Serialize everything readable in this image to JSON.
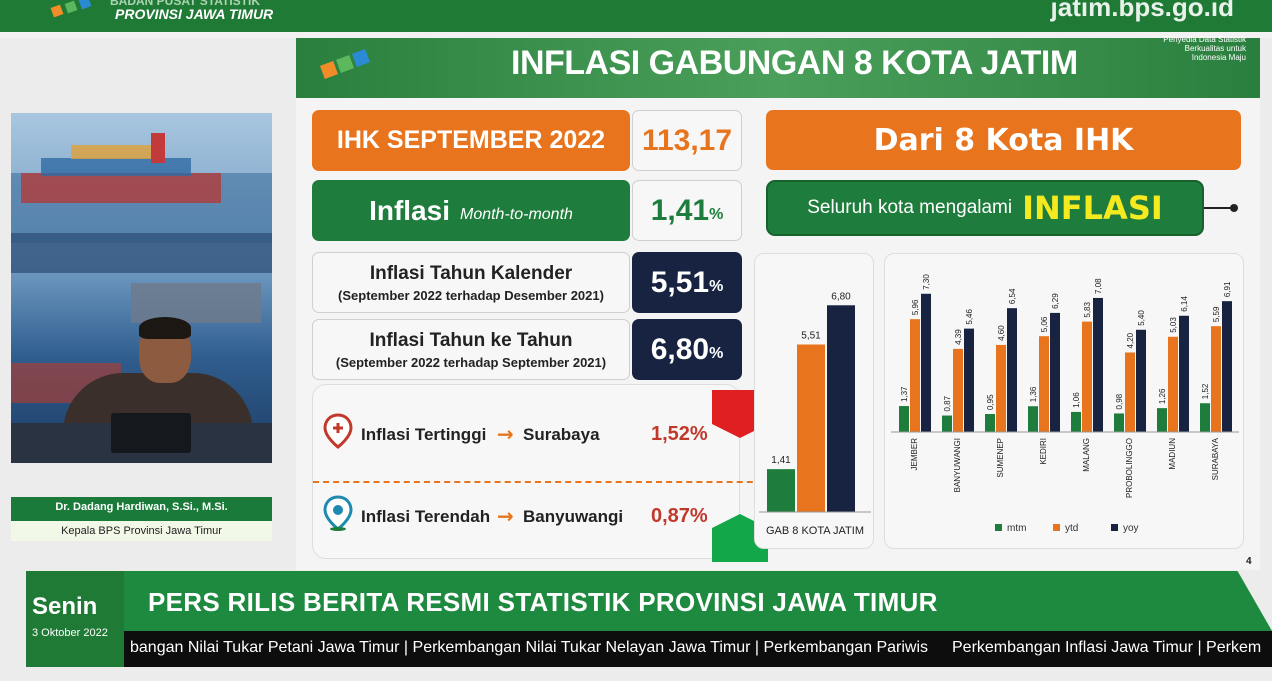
{
  "top": {
    "org_line1": "BADAN PUSAT STATISTIK",
    "org_line2": "PROVINSI JAWA TIMUR",
    "url": "jatim.bps.go.id"
  },
  "presenter": {
    "name": "Dr. Dadang Hardiwan, S.Si., M.Si.",
    "role": "Kepala BPS Provinsi Jawa Timur"
  },
  "slide": {
    "title": "INFLASI GABUNGAN 8 KOTA JATIM",
    "tagline": "Penyedia Data Statistik Berkualitas untuk Indonesia Maju",
    "ihk_label": "IHK SEPTEMBER 2022",
    "ihk_value": "113,17",
    "mtm_label": "Inflasi",
    "mtm_sub": "Month-to-month",
    "mtm_value": "1,41",
    "ytd_label": "Inflasi Tahun Kalender",
    "ytd_sub": "(September 2022 terhadap Desember 2021)",
    "ytd_value": "5,51",
    "yoy_label": "Inflasi Tahun ke Tahun",
    "yoy_sub": "(September 2022 terhadap September 2021)",
    "yoy_value": "6,80",
    "percent": "%",
    "kota_title": "Dari 8 Kota IHK",
    "kota_text": "Seluruh kota mengalami",
    "kota_highlight": "INFLASI",
    "tertinggi_label": "Inflasi Tertinggi",
    "tertinggi_city": "Surabaya",
    "tertinggi_value": "1,52%",
    "terendah_label": "Inflasi Terendah",
    "terendah_city": "Banyuwangi",
    "terendah_value": "0,87%",
    "arrow": "→",
    "page_number": "4"
  },
  "chart_data": [
    {
      "type": "bar",
      "categories": [
        "GAB 8 KOTA JATIM"
      ],
      "series": [
        {
          "name": "mtm",
          "values": [
            1.41
          ]
        },
        {
          "name": "ytd",
          "values": [
            5.51
          ]
        },
        {
          "name": "yoy",
          "values": [
            6.8
          ]
        }
      ],
      "value_labels": [
        [
          "1,41"
        ],
        [
          "5,51"
        ],
        [
          "6,80"
        ]
      ],
      "ylim": [
        0,
        7.5
      ],
      "colors": [
        "#1e7d3c",
        "#e8751e",
        "#172340"
      ]
    },
    {
      "type": "bar",
      "categories": [
        "JEMBER",
        "BANYUWANGI",
        "SUMENEP",
        "KEDIRI",
        "MALANG",
        "PROBOLINGGO",
        "MADIUN",
        "SURABAYA"
      ],
      "series": [
        {
          "name": "mtm",
          "values": [
            1.37,
            0.87,
            0.95,
            1.36,
            1.06,
            0.98,
            1.26,
            1.52
          ]
        },
        {
          "name": "ytd",
          "values": [
            5.96,
            4.39,
            4.6,
            5.06,
            5.83,
            4.2,
            5.03,
            5.59
          ]
        },
        {
          "name": "yoy",
          "values": [
            7.3,
            5.46,
            6.54,
            6.29,
            7.08,
            5.4,
            6.14,
            6.91
          ]
        }
      ],
      "value_labels": [
        [
          "1,37",
          "0,87",
          "0,95",
          "1,36",
          "1,06",
          "0,98",
          "1,26",
          "1,52"
        ],
        [
          "5,96",
          "4,39",
          "4,60",
          "5,06",
          "5,83",
          "4,20",
          "5,03",
          "5,59"
        ],
        [
          "7,30",
          "5,46",
          "6,54",
          "6,29",
          "7,08",
          "5,40",
          "6,14",
          "6,91"
        ]
      ],
      "ylim": [
        0,
        7.5
      ],
      "legend": "bottom",
      "colors": [
        "#1e7d3c",
        "#e8751e",
        "#172340"
      ]
    }
  ],
  "footer": {
    "day": "Senin",
    "date": "3 Oktober 2022",
    "banner": "PERS RILIS BERITA RESMI STATISTIK PROVINSI JAWA TIMUR",
    "ticker_a": "bangan Nilai Tukar Petani Jawa Timur | Perkembangan Nilai Tukar Nelayan Jawa Timur | Perkembangan Pariwis",
    "ticker_b": "Perkembangan Inflasi Jawa Timur | Perkem"
  }
}
